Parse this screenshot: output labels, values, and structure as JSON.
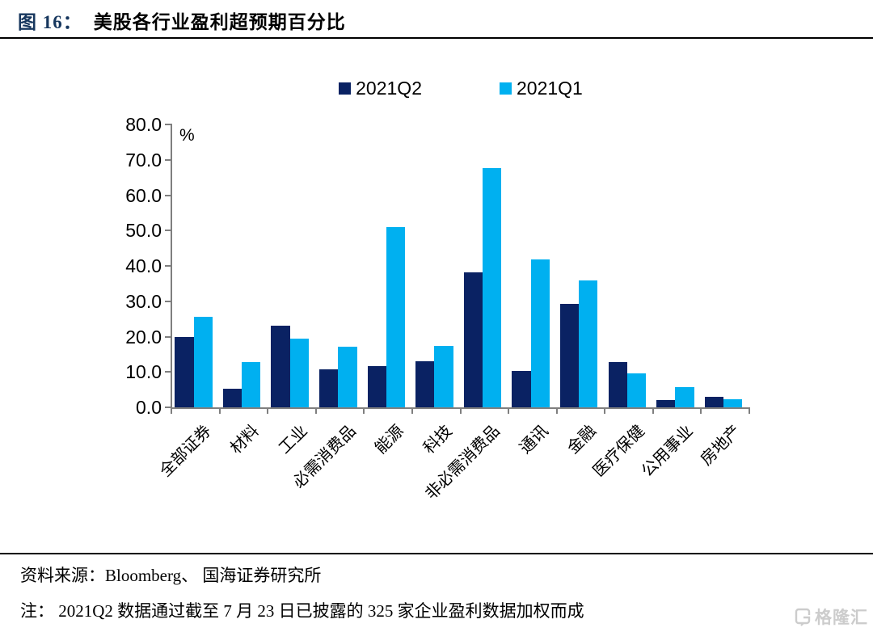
{
  "figure": {
    "label": "图 16：",
    "title": "美股各行业盈利超预期百分比"
  },
  "chart_data": {
    "type": "bar",
    "title": "美股各行业盈利超预期百分比",
    "unit_label": "%",
    "categories": [
      "全部证券",
      "材料",
      "工业",
      "必需消费品",
      "能源",
      "科技",
      "非必需消费品",
      "通讯",
      "金融",
      "医疗保健",
      "公用事业",
      "房地产"
    ],
    "series": [
      {
        "name": "2021Q2",
        "color": "#0a2263",
        "values": [
          19.8,
          5.3,
          23.0,
          10.7,
          11.6,
          13.1,
          38.1,
          10.3,
          29.3,
          12.9,
          2.0,
          2.9
        ]
      },
      {
        "name": "2021Q1",
        "color": "#00b0f0",
        "values": [
          25.6,
          12.8,
          19.4,
          17.2,
          51.0,
          17.3,
          67.7,
          41.9,
          35.9,
          9.7,
          5.7,
          2.3
        ]
      }
    ],
    "ylim": [
      0,
      80
    ],
    "ytick_step": 10,
    "ytick_labels": [
      "0.0",
      "10.0",
      "20.0",
      "30.0",
      "40.0",
      "50.0",
      "60.0",
      "70.0",
      "80.0"
    ],
    "legend_position": "top-center",
    "grid": false
  },
  "footer": {
    "source_label": "资料来源：",
    "source_text": "Bloomberg、 国海证券研究所",
    "note": "注： 2021Q2 数据通过截至 7 月 23 日已披露的 325 家企业盈利数据加权而成"
  },
  "watermark": {
    "text": "格隆汇"
  },
  "colors": {
    "title_label": "#17375e",
    "series_q2": "#0a2263",
    "series_q1": "#00b0f0",
    "axis": "#7f7f7f",
    "watermark": "#cccccc"
  }
}
